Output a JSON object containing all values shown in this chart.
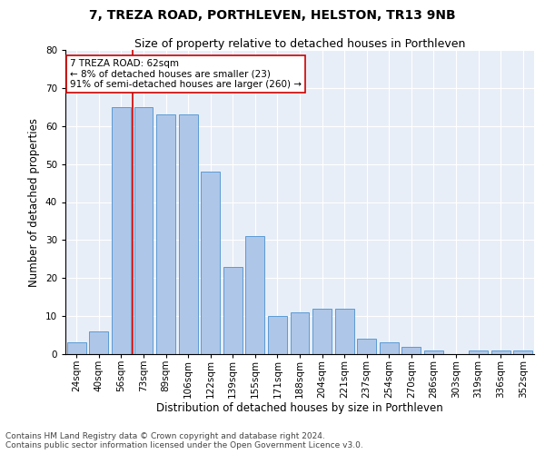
{
  "title": "7, TREZA ROAD, PORTHLEVEN, HELSTON, TR13 9NB",
  "subtitle": "Size of property relative to detached houses in Porthleven",
  "xlabel": "Distribution of detached houses by size in Porthleven",
  "ylabel": "Number of detached properties",
  "categories": [
    "24sqm",
    "40sqm",
    "56sqm",
    "73sqm",
    "89sqm",
    "106sqm",
    "122sqm",
    "139sqm",
    "155sqm",
    "171sqm",
    "188sqm",
    "204sqm",
    "221sqm",
    "237sqm",
    "254sqm",
    "270sqm",
    "286sqm",
    "303sqm",
    "319sqm",
    "336sqm",
    "352sqm"
  ],
  "values": [
    3,
    6,
    65,
    65,
    63,
    63,
    48,
    23,
    31,
    10,
    11,
    12,
    12,
    4,
    3,
    2,
    1,
    0,
    1,
    1,
    1
  ],
  "bar_color": "#aec6e8",
  "bar_edgecolor": "#5b9bd5",
  "background_color": "#e8eef7",
  "vline_x_index": 2,
  "vline_color": "#cc0000",
  "annotation_text": "7 TREZA ROAD: 62sqm\n← 8% of detached houses are smaller (23)\n91% of semi-detached houses are larger (260) →",
  "annotation_box_facecolor": "#ffffff",
  "annotation_box_edgecolor": "#cc0000",
  "ylim": [
    0,
    80
  ],
  "yticks": [
    0,
    10,
    20,
    30,
    40,
    50,
    60,
    70,
    80
  ],
  "footer_line1": "Contains HM Land Registry data © Crown copyright and database right 2024.",
  "footer_line2": "Contains public sector information licensed under the Open Government Licence v3.0.",
  "title_fontsize": 10,
  "subtitle_fontsize": 9,
  "xlabel_fontsize": 8.5,
  "ylabel_fontsize": 8.5,
  "tick_fontsize": 7.5,
  "footer_fontsize": 6.5,
  "annotation_fontsize": 7.5
}
